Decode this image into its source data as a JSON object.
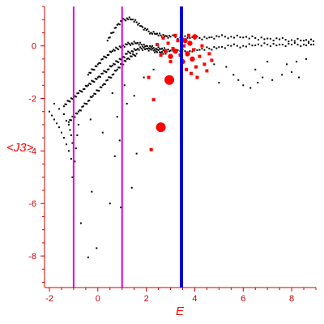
{
  "chart_data": {
    "type": "scatter",
    "title": "",
    "xlabel": "E",
    "ylabel": "<J3>",
    "xlim": [
      -2.2,
      9.0
    ],
    "ylim": [
      -9.2,
      1.5
    ],
    "x_ticks": [
      -2,
      0,
      2,
      4,
      6,
      8
    ],
    "y_ticks": [
      0,
      -2,
      -4,
      -6,
      -8
    ],
    "grid": false,
    "legend": "none",
    "colors": {
      "axis": "#cc0000",
      "points": "#000000",
      "highlight": "#ff0000",
      "vline_magenta": "#e000e0",
      "vline_blue": "#0000dd"
    },
    "vertical_lines": [
      {
        "x": -1.0,
        "color": "#e000e0"
      },
      {
        "x": 1.0,
        "color": "#e000e0"
      },
      {
        "x": 3.45,
        "color": "#0000dd"
      }
    ],
    "black_band_upper": [
      [
        0.4,
        0.2
      ],
      [
        0.6,
        0.5
      ],
      [
        0.8,
        0.8
      ],
      [
        1.0,
        0.95
      ],
      [
        1.2,
        1.05
      ],
      [
        1.4,
        1.0
      ],
      [
        1.6,
        0.9
      ],
      [
        1.8,
        0.75
      ],
      [
        2.0,
        0.6
      ],
      [
        2.2,
        0.5
      ],
      [
        2.4,
        0.45
      ],
      [
        2.6,
        0.4
      ],
      [
        2.8,
        0.38
      ],
      [
        3.0,
        0.35
      ],
      [
        3.4,
        0.32
      ],
      [
        3.8,
        0.3
      ],
      [
        4.2,
        0.3
      ],
      [
        4.6,
        0.32
      ],
      [
        5.0,
        0.35
      ],
      [
        5.5,
        0.35
      ],
      [
        6.0,
        0.32
      ],
      [
        6.5,
        0.3
      ],
      [
        7.0,
        0.28
      ],
      [
        7.5,
        0.25
      ],
      [
        8.0,
        0.22
      ],
      [
        8.5,
        0.2
      ],
      [
        8.9,
        0.18
      ]
    ],
    "black_band_mid": [
      [
        -0.4,
        -1.1
      ],
      [
        -0.2,
        -0.9
      ],
      [
        0.0,
        -0.7
      ],
      [
        0.2,
        -0.5
      ],
      [
        0.4,
        -0.35
      ],
      [
        0.6,
        -0.2
      ],
      [
        0.8,
        -0.1
      ],
      [
        1.0,
        0.0
      ],
      [
        1.2,
        0.05
      ],
      [
        1.4,
        0.1
      ],
      [
        1.6,
        0.1
      ],
      [
        1.8,
        0.05
      ],
      [
        2.0,
        0.0
      ],
      [
        2.2,
        -0.05
      ],
      [
        2.4,
        -0.1
      ],
      [
        2.6,
        -0.12
      ],
      [
        2.8,
        -0.15
      ],
      [
        3.0,
        -0.18
      ],
      [
        3.4,
        -0.2
      ],
      [
        3.8,
        -0.2
      ],
      [
        4.2,
        -0.15
      ],
      [
        4.6,
        -0.1
      ],
      [
        5.0,
        -0.05
      ],
      [
        5.5,
        0.0
      ],
      [
        6.0,
        0.0
      ],
      [
        6.5,
        0.02
      ],
      [
        7.0,
        0.05
      ],
      [
        7.5,
        0.05
      ],
      [
        8.0,
        0.05
      ],
      [
        8.5,
        0.05
      ],
      [
        8.9,
        0.05
      ]
    ],
    "black_band_lower": [
      [
        -1.4,
        -2.3
      ],
      [
        -1.2,
        -2.1
      ],
      [
        -1.0,
        -1.95
      ],
      [
        -0.8,
        -1.8
      ],
      [
        -0.6,
        -1.65
      ],
      [
        -0.4,
        -1.5
      ],
      [
        -0.2,
        -1.35
      ],
      [
        0.0,
        -1.2
      ],
      [
        0.2,
        -1.05
      ],
      [
        0.4,
        -0.9
      ],
      [
        0.6,
        -0.75
      ],
      [
        0.8,
        -0.6
      ],
      [
        1.0,
        -0.45
      ],
      [
        1.2,
        -0.3
      ],
      [
        1.4,
        -0.2
      ],
      [
        1.6,
        -0.15
      ],
      [
        1.8,
        -0.1
      ],
      [
        2.0,
        -0.1
      ],
      [
        2.2,
        -0.15
      ],
      [
        2.4,
        -0.2
      ],
      [
        2.6,
        -0.25
      ],
      [
        2.8,
        -0.3
      ]
    ],
    "black_band_bottom": [
      [
        -1.2,
        -2.9
      ],
      [
        -1.0,
        -2.7
      ],
      [
        -0.8,
        -2.5
      ],
      [
        -0.6,
        -2.3
      ],
      [
        -0.4,
        -2.1
      ],
      [
        -0.2,
        -1.9
      ],
      [
        0.0,
        -1.7
      ],
      [
        0.2,
        -1.5
      ],
      [
        0.4,
        -1.3
      ],
      [
        0.6,
        -1.1
      ],
      [
        0.8,
        -0.9
      ],
      [
        1.0,
        -0.7
      ],
      [
        1.2,
        -0.5
      ],
      [
        1.4,
        -0.4
      ],
      [
        1.6,
        -0.3
      ]
    ],
    "black_left_branch": [
      [
        -2.0,
        -2.5
      ],
      [
        -1.9,
        -2.65
      ],
      [
        -1.8,
        -2.8
      ],
      [
        -1.7,
        -2.95
      ],
      [
        -1.6,
        -3.1
      ],
      [
        -1.5,
        -3.3
      ],
      [
        -1.4,
        -3.5
      ],
      [
        -1.3,
        -3.75
      ],
      [
        -1.2,
        -4.0
      ],
      [
        -1.1,
        -4.3
      ],
      [
        -1.0,
        -4.6
      ],
      [
        -0.95,
        -4.4
      ],
      [
        -0.9,
        -3.9
      ],
      [
        -0.85,
        -3.4
      ],
      [
        -0.8,
        -3.0
      ],
      [
        -1.8,
        -2.2
      ],
      [
        -1.6,
        -2.4
      ],
      [
        -1.4,
        -2.6
      ],
      [
        -1.2,
        -3.0
      ],
      [
        -1.1,
        -3.4
      ],
      [
        -1.0,
        -3.9
      ],
      [
        -1.05,
        -3.7
      ],
      [
        -1.15,
        -3.2
      ],
      [
        -1.3,
        -2.85
      ]
    ],
    "black_scattered": [
      [
        -1.05,
        -5.0
      ],
      [
        -0.7,
        -6.75
      ],
      [
        -0.4,
        -8.05
      ],
      [
        -0.25,
        -5.55
      ],
      [
        -0.05,
        -7.7
      ],
      [
        0.5,
        -6.0
      ],
      [
        0.7,
        -4.2
      ],
      [
        0.95,
        -6.15
      ],
      [
        1.4,
        -5.4
      ],
      [
        1.6,
        -4.1
      ],
      [
        0.9,
        -3.6
      ],
      [
        0.8,
        -2.7
      ],
      [
        1.2,
        -2.2
      ],
      [
        1.5,
        -1.9
      ],
      [
        0.2,
        -3.3
      ],
      [
        -0.3,
        -2.8
      ],
      [
        0.6,
        -1.8
      ],
      [
        1.1,
        -1.5
      ],
      [
        1.9,
        -1.2
      ],
      [
        2.3,
        -0.9
      ],
      [
        5.0,
        -1.4
      ],
      [
        5.6,
        -1.1
      ],
      [
        6.0,
        -1.5
      ],
      [
        6.3,
        -1.6
      ],
      [
        6.8,
        -1.2
      ],
      [
        7.2,
        -1.3
      ],
      [
        7.6,
        -1.1
      ],
      [
        8.0,
        -1.0
      ],
      [
        8.3,
        -1.2
      ],
      [
        5.3,
        -0.8
      ],
      [
        6.5,
        -0.9
      ],
      [
        7.0,
        -0.6
      ],
      [
        7.8,
        -0.7
      ],
      [
        8.6,
        -0.5
      ],
      [
        4.8,
        -0.7
      ],
      [
        5.8,
        -1.3
      ],
      [
        6.6,
        -1.4
      ],
      [
        8.2,
        -0.6
      ]
    ],
    "red_points": [
      {
        "x": 2.95,
        "y": -1.3,
        "size": "large"
      },
      {
        "x": 2.6,
        "y": -3.1,
        "size": "large"
      },
      {
        "x": 2.3,
        "y": -2.05,
        "size": "small"
      },
      {
        "x": 2.2,
        "y": -3.95,
        "size": "small"
      },
      {
        "x": 2.1,
        "y": -1.2,
        "size": "small"
      },
      {
        "x": 3.0,
        "y": -0.4,
        "size": "medium"
      },
      {
        "x": 3.2,
        "y": -0.2,
        "size": "medium"
      },
      {
        "x": 3.6,
        "y": 0.2,
        "size": "medium"
      },
      {
        "x": 3.7,
        "y": -0.3,
        "size": "medium"
      },
      {
        "x": 3.8,
        "y": 0.1,
        "size": "medium"
      },
      {
        "x": 3.9,
        "y": -0.5,
        "size": "medium"
      },
      {
        "x": 4.0,
        "y": 0.35,
        "size": "medium"
      },
      {
        "x": 3.5,
        "y": -0.6,
        "size": "medium"
      },
      {
        "x": 3.65,
        "y": -0.9,
        "size": "small"
      },
      {
        "x": 4.2,
        "y": -0.4,
        "size": "small"
      },
      {
        "x": 4.3,
        "y": 0.0,
        "size": "small"
      },
      {
        "x": 4.4,
        "y": -0.7,
        "size": "small"
      },
      {
        "x": 4.6,
        "y": -0.3,
        "size": "small"
      },
      {
        "x": 4.1,
        "y": -1.2,
        "size": "small"
      },
      {
        "x": 4.5,
        "y": -0.95,
        "size": "small"
      },
      {
        "x": 2.8,
        "y": -0.2,
        "size": "small"
      },
      {
        "x": 2.9,
        "y": 0.1,
        "size": "small"
      },
      {
        "x": 3.1,
        "y": -0.1,
        "size": "small"
      },
      {
        "x": 3.3,
        "y": 0.2,
        "size": "small"
      },
      {
        "x": 2.7,
        "y": 0.3,
        "size": "small"
      },
      {
        "x": 2.6,
        "y": -0.35,
        "size": "small"
      },
      {
        "x": 3.0,
        "y": -0.6,
        "size": "small"
      },
      {
        "x": 3.4,
        "y": -0.35,
        "size": "small"
      },
      {
        "x": 3.75,
        "y": 0.4,
        "size": "small"
      },
      {
        "x": 3.95,
        "y": -0.15,
        "size": "small"
      },
      {
        "x": 4.05,
        "y": -0.8,
        "size": "small"
      },
      {
        "x": 3.85,
        "y": -1.05,
        "size": "small"
      },
      {
        "x": 4.7,
        "y": -0.55,
        "size": "small"
      },
      {
        "x": 3.2,
        "y": 0.4,
        "size": "small"
      },
      {
        "x": 3.55,
        "y": 0.0,
        "size": "small"
      },
      {
        "x": 2.45,
        "y": 0.05,
        "size": "small"
      }
    ]
  }
}
